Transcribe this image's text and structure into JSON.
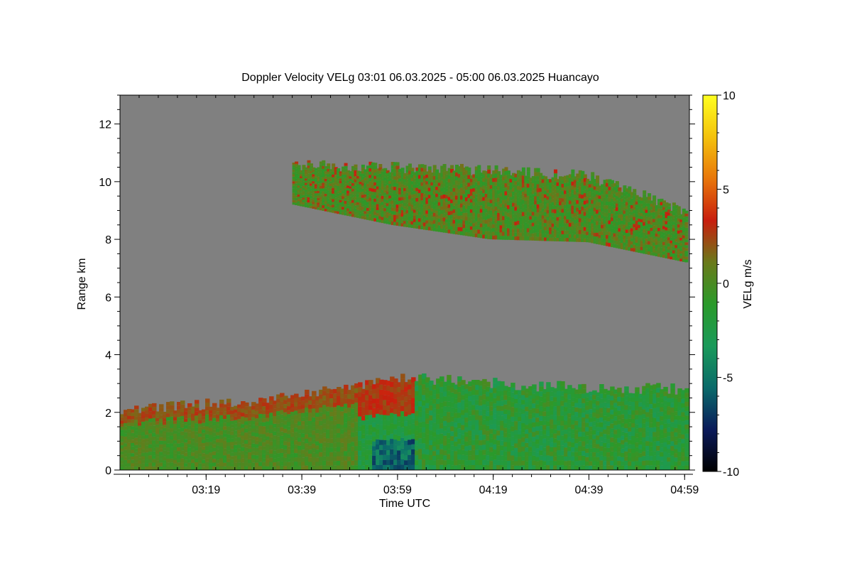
{
  "chart_data": {
    "type": "heatmap",
    "title": "Doppler Velocity VELg   03:01 06.03.2025 - 05:00 06.03.2025 Huancayo",
    "xlabel": "Time UTC",
    "ylabel": "Range km",
    "x_ticks": [
      "03:19",
      "03:39",
      "03:59",
      "04:19",
      "04:39",
      "04:59"
    ],
    "y_ticks": [
      "0",
      "2",
      "4",
      "6",
      "8",
      "10",
      "12"
    ],
    "xlim": [
      "03:01",
      "05:00"
    ],
    "ylim": [
      0,
      13
    ],
    "background_color": "#808080",
    "colorbar": {
      "label": "VELg m/s",
      "ticks": [
        "10",
        "5",
        "0",
        "-5",
        "-10"
      ],
      "range": [
        -10,
        10
      ],
      "stops": [
        "#000000",
        "#0a1a5a",
        "#0a6a6a",
        "#1a9a5a",
        "#2a9a2a",
        "#6a7a1a",
        "#c81e0e",
        "#e8760a",
        "#f4c20c",
        "#ffff20"
      ]
    },
    "layers": [
      {
        "name": "upper cloud",
        "time_start": "03:37",
        "time_end": "04:59",
        "base_km": [
          9.2,
          8.5,
          8.0,
          7.9,
          7.2
        ],
        "top_km": [
          10.6,
          10.5,
          10.4,
          10.2,
          9.0
        ],
        "velocity_ms": [
          -1,
          1.5
        ]
      },
      {
        "name": "lower layer",
        "time_start": "03:01",
        "time_end": "04:59",
        "base_km": 0,
        "top_km": [
          2.1,
          2.4,
          3.2,
          2.9,
          2.8
        ],
        "velocity_ms": [
          -7,
          3
        ]
      }
    ]
  }
}
